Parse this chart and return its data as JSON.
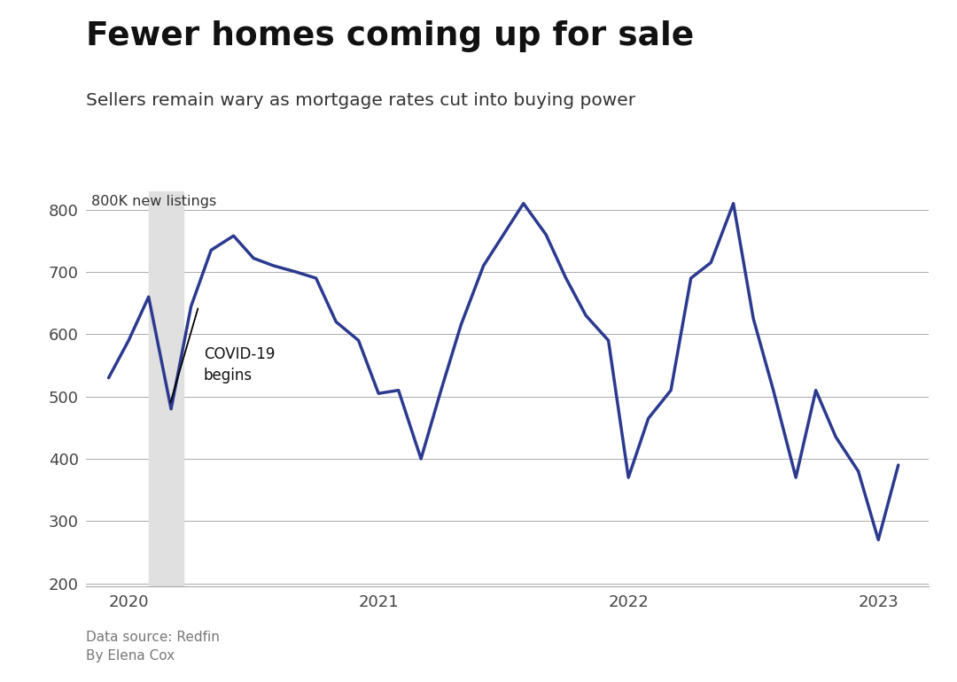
{
  "title": "Fewer homes coming up for sale",
  "subtitle": "Sellers remain wary as mortgage rates cut into buying power",
  "ylabel": "800K new listings",
  "footer_line1": "Data source: Redfin",
  "footer_line2": "By Elena Cox",
  "line_color": "#2b3a8f",
  "line_width": 2.5,
  "background_color": "#ffffff",
  "covid_xmin": 2020.08,
  "covid_xmax": 2020.22,
  "annotation_text": "COVID-19\nbegins",
  "ylim": [
    195,
    830
  ],
  "yticks": [
    200,
    300,
    400,
    500,
    600,
    700,
    800
  ],
  "xlim_start": 2019.83,
  "xlim_end": 2023.2,
  "xtick_positions": [
    2020,
    2021,
    2022,
    2023
  ],
  "xtick_labels": [
    "2020",
    "2021",
    "2022",
    "2023"
  ],
  "dates": [
    2019.92,
    2020.0,
    2020.08,
    2020.17,
    2020.25,
    2020.33,
    2020.42,
    2020.5,
    2020.58,
    2020.67,
    2020.75,
    2020.83,
    2020.92,
    2021.0,
    2021.08,
    2021.17,
    2021.25,
    2021.33,
    2021.42,
    2021.5,
    2021.58,
    2021.67,
    2021.75,
    2021.83,
    2021.92,
    2022.0,
    2022.08,
    2022.17,
    2022.25,
    2022.33,
    2022.42,
    2022.5,
    2022.58,
    2022.67,
    2022.75,
    2022.83,
    2022.92,
    2023.0,
    2023.08
  ],
  "values": [
    530,
    590,
    660,
    480,
    645,
    735,
    758,
    722,
    710,
    700,
    690,
    620,
    590,
    505,
    510,
    400,
    510,
    615,
    710,
    760,
    810,
    760,
    690,
    630,
    590,
    370,
    465,
    510,
    690,
    715,
    810,
    625,
    510,
    370,
    510,
    435,
    380,
    270,
    390
  ]
}
